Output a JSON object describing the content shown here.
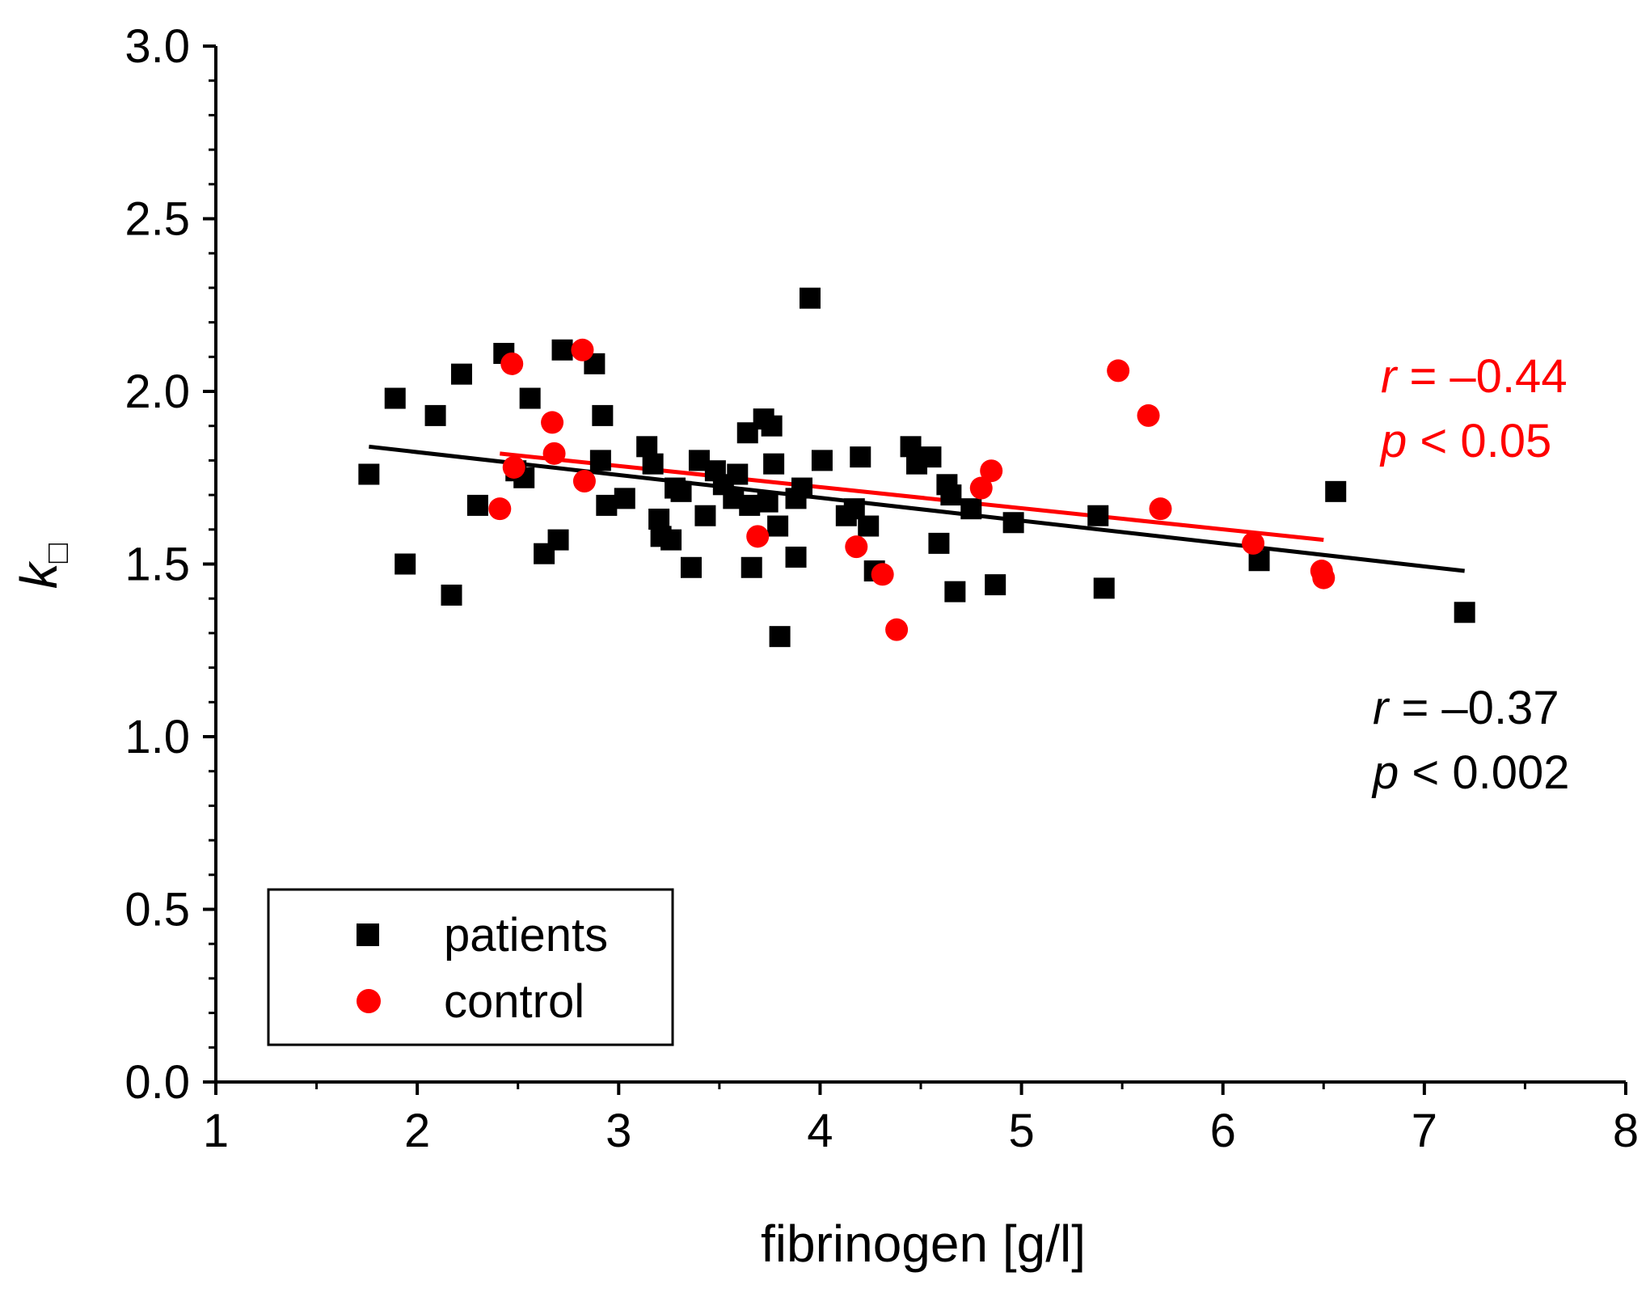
{
  "chart_data": {
    "type": "scatter",
    "title": "",
    "xlabel": "fibrinogen [g/l]",
    "ylabel": "k",
    "ylabel_subscript": "□",
    "xlim": [
      1,
      8
    ],
    "ylim": [
      0.0,
      3.0
    ],
    "x_ticks": [
      1,
      2,
      3,
      4,
      5,
      6,
      7,
      8
    ],
    "x_tick_labels": [
      "1",
      "2",
      "3",
      "4",
      "5",
      "6",
      "7",
      "8"
    ],
    "y_ticks": [
      0.0,
      0.5,
      1.0,
      1.5,
      2.0,
      2.5,
      3.0
    ],
    "y_tick_labels": [
      "0.0",
      "0.5",
      "1.0",
      "1.5",
      "2.0",
      "2.5",
      "3.0"
    ],
    "grid": false,
    "legend_position": "bottom-left",
    "series": [
      {
        "name": "patients",
        "marker": "square",
        "color": "#000000",
        "points": [
          [
            1.76,
            1.76
          ],
          [
            1.89,
            1.98
          ],
          [
            1.94,
            1.5
          ],
          [
            2.09,
            1.93
          ],
          [
            2.17,
            1.41
          ],
          [
            2.22,
            2.05
          ],
          [
            2.3,
            1.67
          ],
          [
            2.43,
            2.11
          ],
          [
            2.49,
            1.77
          ],
          [
            2.53,
            1.75
          ],
          [
            2.56,
            1.98
          ],
          [
            2.63,
            1.53
          ],
          [
            2.7,
            1.57
          ],
          [
            2.72,
            2.12
          ],
          [
            2.88,
            2.08
          ],
          [
            2.91,
            1.8
          ],
          [
            2.92,
            1.93
          ],
          [
            2.94,
            1.67
          ],
          [
            3.03,
            1.69
          ],
          [
            3.14,
            1.84
          ],
          [
            3.17,
            1.79
          ],
          [
            3.2,
            1.63
          ],
          [
            3.21,
            1.58
          ],
          [
            3.26,
            1.57
          ],
          [
            3.28,
            1.72
          ],
          [
            3.31,
            1.71
          ],
          [
            3.36,
            1.49
          ],
          [
            3.4,
            1.8
          ],
          [
            3.43,
            1.64
          ],
          [
            3.48,
            1.77
          ],
          [
            3.52,
            1.73
          ],
          [
            3.57,
            1.69
          ],
          [
            3.59,
            1.76
          ],
          [
            3.64,
            1.88
          ],
          [
            3.65,
            1.67
          ],
          [
            3.66,
            1.49
          ],
          [
            3.72,
            1.92
          ],
          [
            3.74,
            1.68
          ],
          [
            3.76,
            1.9
          ],
          [
            3.77,
            1.79
          ],
          [
            3.79,
            1.61
          ],
          [
            3.8,
            1.29
          ],
          [
            3.88,
            1.69
          ],
          [
            3.88,
            1.52
          ],
          [
            3.91,
            1.72
          ],
          [
            3.95,
            2.27
          ],
          [
            4.01,
            1.8
          ],
          [
            4.13,
            1.64
          ],
          [
            4.17,
            1.66
          ],
          [
            4.2,
            1.81
          ],
          [
            4.24,
            1.61
          ],
          [
            4.27,
            1.48
          ],
          [
            4.45,
            1.84
          ],
          [
            4.48,
            1.79
          ],
          [
            4.55,
            1.81
          ],
          [
            4.59,
            1.56
          ],
          [
            4.63,
            1.73
          ],
          [
            4.65,
            1.7
          ],
          [
            4.67,
            1.42
          ],
          [
            4.75,
            1.66
          ],
          [
            4.87,
            1.44
          ],
          [
            4.96,
            1.62
          ],
          [
            5.38,
            1.64
          ],
          [
            5.41,
            1.43
          ],
          [
            6.18,
            1.51
          ],
          [
            6.56,
            1.71
          ],
          [
            7.2,
            1.36
          ]
        ],
        "fit_line": [
          [
            1.76,
            1.84
          ],
          [
            7.2,
            1.48
          ]
        ]
      },
      {
        "name": "control",
        "marker": "circle",
        "color": "#ff0000",
        "points": [
          [
            2.41,
            1.66
          ],
          [
            2.47,
            2.08
          ],
          [
            2.48,
            1.78
          ],
          [
            2.67,
            1.91
          ],
          [
            2.68,
            1.82
          ],
          [
            2.82,
            2.12
          ],
          [
            2.83,
            1.74
          ],
          [
            3.69,
            1.58
          ],
          [
            4.18,
            1.55
          ],
          [
            4.31,
            1.47
          ],
          [
            4.38,
            1.31
          ],
          [
            4.8,
            1.72
          ],
          [
            4.85,
            1.77
          ],
          [
            5.48,
            2.06
          ],
          [
            5.63,
            1.93
          ],
          [
            5.69,
            1.66
          ],
          [
            6.15,
            1.56
          ],
          [
            6.49,
            1.48
          ],
          [
            6.5,
            1.46
          ]
        ],
        "fit_line": [
          [
            2.41,
            1.82
          ],
          [
            6.5,
            1.57
          ]
        ]
      }
    ],
    "annotations": [
      {
        "key": "control_r",
        "italic": "r",
        "rest": " = –0.44",
        "color": "#ff0000"
      },
      {
        "key": "control_p",
        "italic": "p",
        "rest": " < 0.05",
        "color": "#ff0000"
      },
      {
        "key": "patients_r",
        "italic": "r",
        "rest": " = –0.37",
        "color": "#000000"
      },
      {
        "key": "patients_p",
        "italic": "p",
        "rest": " < 0.002",
        "color": "#000000"
      }
    ]
  }
}
